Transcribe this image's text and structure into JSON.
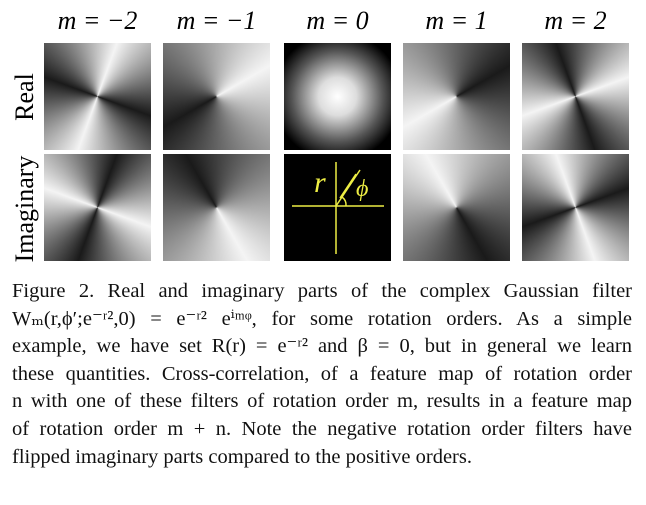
{
  "columns": [
    "m = −2",
    "m = −1",
    "m = 0",
    "m = 1",
    "m = 2"
  ],
  "rows": [
    "Real",
    "Imaginary"
  ],
  "inset": {
    "r": "r",
    "phi": "ϕ"
  },
  "caption": [
    "Figure 2. Real and imaginary parts of the complex Gaussian filter",
    "Wₘ(r,ϕ′;e⁻ʳ²,0) = e⁻ʳ² eⁱᵐᵠ, for some rotation orders. As a simple",
    "example, we have set R(r) = e⁻ʳ² and β = 0, but in general we learn",
    "these quantities. Cross-correlation, of a feature map of rotation order",
    "n with one of these filters of rotation order m, results in a feature map",
    "of rotation order m + n. Note the negative rotation order filters have",
    "flipped imaginary parts compared to the positive orders."
  ]
}
